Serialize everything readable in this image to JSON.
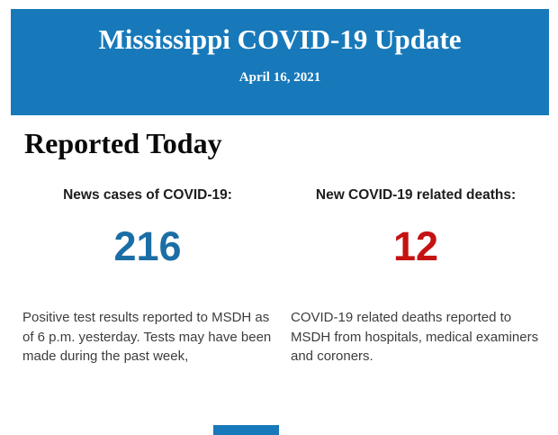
{
  "header": {
    "title": "Mississippi COVID-19 Update",
    "date": "April 16, 2021",
    "background_color": "#1779BA",
    "text_color": "#FFFFFF"
  },
  "section": {
    "title": "Reported Today"
  },
  "stats": {
    "new_cases": {
      "label": "News cases of COVID-19:",
      "value": "216",
      "value_color": "#1B6EA5",
      "description": "Positive test results reported to MSDH as of 6 p.m. yesterday. Tests may have been made during the past week,"
    },
    "deaths": {
      "label": "New COVID-19 related deaths:",
      "value": "12",
      "value_color": "#C51212",
      "description": "COVID-19 related deaths reported to MSDH from hospitals, medical examiners and coroners."
    }
  },
  "footer": {
    "partial_section_color": "#1779BA"
  }
}
